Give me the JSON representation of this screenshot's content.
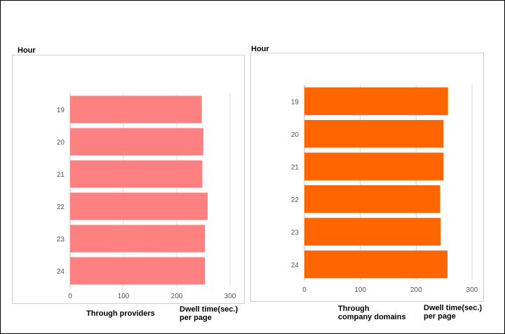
{
  "chart_data": [
    {
      "type": "bar",
      "orientation": "horizontal",
      "ylabel": "Hour",
      "xlabel": "Dwell time(sec.) per page",
      "subtitle": "Through providers",
      "categories": [
        "19",
        "20",
        "21",
        "22",
        "23",
        "24"
      ],
      "values": [
        247,
        250,
        248,
        258,
        253,
        253
      ],
      "xlim": [
        0,
        300
      ],
      "xticks": [
        "0",
        "100",
        "200",
        "300"
      ],
      "grid": true,
      "color": "#ff8080"
    },
    {
      "type": "bar",
      "orientation": "horizontal",
      "ylabel": "Hour",
      "xlabel": "Dwell time(sec.) per page",
      "subtitle": "Through company domains",
      "categories": [
        "19",
        "20",
        "21",
        "22",
        "23",
        "24"
      ],
      "values": [
        257,
        249,
        249,
        243,
        244,
        256
      ],
      "xlim": [
        0,
        300
      ],
      "xticks": [
        "0",
        "100",
        "200",
        "300"
      ],
      "grid": true,
      "color": "#ff6600"
    }
  ],
  "labels": {
    "left_hour": "Hour",
    "left_sub": "Through providers",
    "left_dwell_1": "Dwell time(sec.)",
    "left_dwell_2": "per page",
    "right_hour": "Hour",
    "right_sub_1": "Through",
    "right_sub_2": "company domains",
    "right_dwell_1": "Dwell time(sec.)",
    "right_dwell_2": "per page"
  }
}
